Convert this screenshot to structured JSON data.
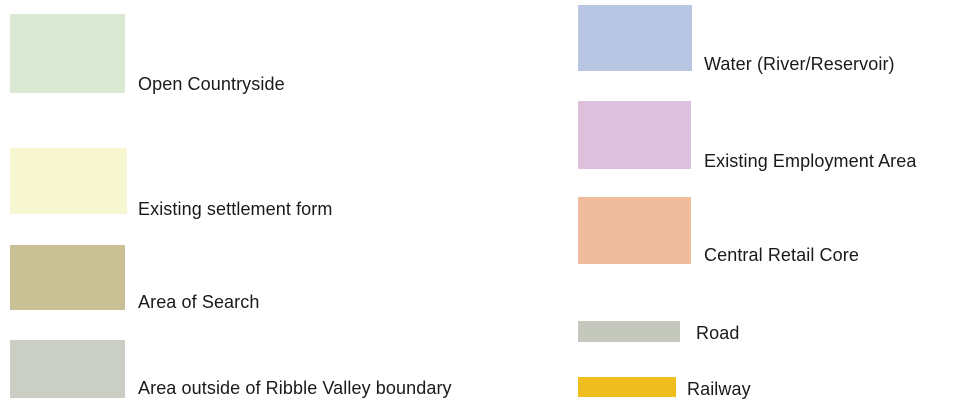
{
  "legend": {
    "left": [
      {
        "label": "Open Countryside",
        "color": "#dbe8d3"
      },
      {
        "label": "Existing settlement form",
        "color": "#f6f6d0"
      },
      {
        "label": "Area of Search",
        "color": "#c9c095"
      },
      {
        "label": "Area outside of Ribble Valley boundary",
        "color": "#cbcec4"
      }
    ],
    "right": [
      {
        "label": "Water (River/Reservoir)",
        "color": "#b8c6e3"
      },
      {
        "label": "Existing Employment Area",
        "color": "#dcc0dc"
      },
      {
        "label": "Central Retail Core",
        "color": "#efbd9e"
      },
      {
        "label": "Road",
        "color": "#c5c8bd"
      },
      {
        "label": "Railway",
        "color": "#f0bd1f"
      }
    ]
  }
}
